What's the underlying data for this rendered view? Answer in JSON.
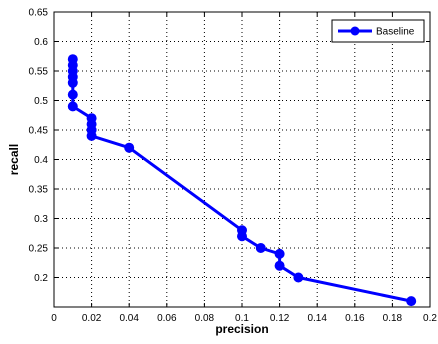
{
  "chart_data": {
    "type": "line",
    "xlabel": "precision",
    "ylabel": "recall",
    "xlim": [
      0,
      0.2
    ],
    "ylim": [
      0.15,
      0.65
    ],
    "x_ticks": [
      "0",
      "0.02",
      "0.04",
      "0.06",
      "0.08",
      "0.1",
      "0.12",
      "0.14",
      "0.16",
      "0.18",
      "0.2"
    ],
    "y_ticks": [
      "0.2",
      "0.25",
      "0.3",
      "0.35",
      "0.4",
      "0.45",
      "0.5",
      "0.55",
      "0.6",
      "0.65"
    ],
    "grid": true,
    "legend_position": "top-right",
    "series": [
      {
        "name": "Baseline",
        "color": "#0000ff",
        "marker": "circle",
        "points": [
          [
            0.01,
            0.57
          ],
          [
            0.01,
            0.56
          ],
          [
            0.01,
            0.55
          ],
          [
            0.01,
            0.54
          ],
          [
            0.01,
            0.53
          ],
          [
            0.01,
            0.51
          ],
          [
            0.01,
            0.49
          ],
          [
            0.02,
            0.47
          ],
          [
            0.02,
            0.46
          ],
          [
            0.02,
            0.45
          ],
          [
            0.02,
            0.44
          ],
          [
            0.04,
            0.42
          ],
          [
            0.1,
            0.28
          ],
          [
            0.1,
            0.27
          ],
          [
            0.11,
            0.25
          ],
          [
            0.12,
            0.24
          ],
          [
            0.12,
            0.22
          ],
          [
            0.13,
            0.2
          ],
          [
            0.19,
            0.16
          ]
        ]
      }
    ]
  }
}
